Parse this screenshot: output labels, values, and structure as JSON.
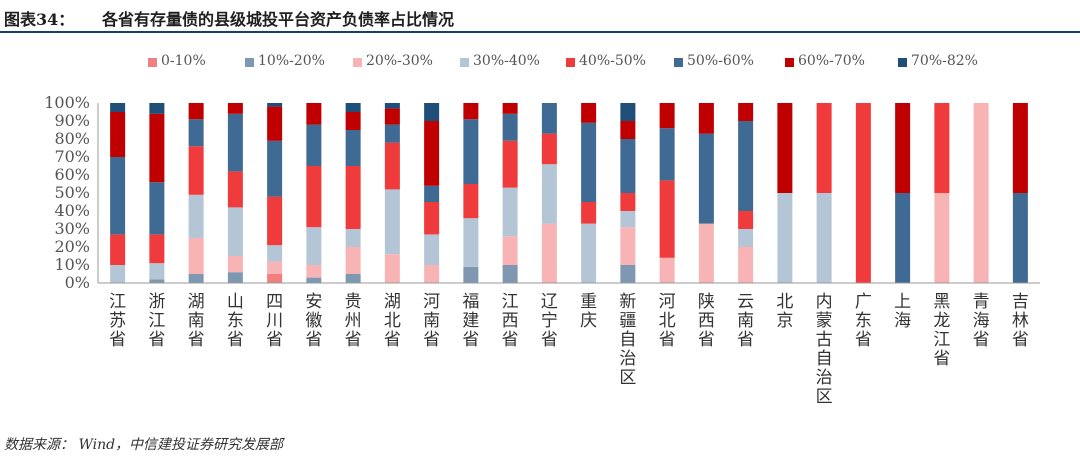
{
  "header": {
    "label": "图表34：",
    "title": "各省有存量债的县级城投平台资产负债率占比情况"
  },
  "footer": {
    "source": "数据来源： Wind，中信建投证券研究发展部"
  },
  "chart_data": {
    "type": "bar",
    "stacked": true,
    "title": "",
    "xlabel": "",
    "ylabel": "",
    "ylim": [
      0,
      100
    ],
    "yticks": [
      "0%",
      "10%",
      "20%",
      "30%",
      "40%",
      "50%",
      "60%",
      "70%",
      "80%",
      "90%",
      "100%"
    ],
    "legend_position": "top",
    "grid": false,
    "categories": [
      "江苏省",
      "浙江省",
      "湖南省",
      "山东省",
      "四川省",
      "安徽省",
      "贵州省",
      "湖北省",
      "河南省",
      "福建省",
      "江西省",
      "辽宁省",
      "重庆",
      "新疆自治区",
      "河北省",
      "陕西省",
      "云南省",
      "北京",
      "内蒙古自治区",
      "广东省",
      "上海",
      "黑龙江省",
      "青海省",
      "吉林省"
    ],
    "series": [
      {
        "name": "0-10%",
        "color": "#f08080",
        "values": [
          0,
          0,
          0,
          0,
          5,
          0,
          0,
          0,
          0,
          0,
          0,
          0,
          0,
          0,
          0,
          0,
          0,
          0,
          0,
          0,
          0,
          0,
          0,
          0
        ]
      },
      {
        "name": "10%-20%",
        "color": "#7f98b2",
        "values": [
          0,
          2,
          5,
          6,
          0,
          3,
          5,
          0,
          0,
          9,
          10,
          0,
          0,
          10,
          0,
          0,
          0,
          0,
          0,
          0,
          0,
          0,
          0,
          0
        ]
      },
      {
        "name": "20%-30%",
        "color": "#f8b4b4",
        "values": [
          0,
          0,
          20,
          9,
          7,
          7,
          15,
          16,
          10,
          0,
          16,
          33,
          0,
          21,
          14,
          33,
          20,
          0,
          0,
          0,
          0,
          50,
          100,
          0
        ]
      },
      {
        "name": "30%-40%",
        "color": "#b4c6d6",
        "values": [
          10,
          9,
          24,
          27,
          9,
          21,
          10,
          36,
          17,
          27,
          27,
          33,
          33,
          9,
          0,
          0,
          10,
          50,
          50,
          0,
          0,
          0,
          0,
          0
        ]
      },
      {
        "name": "40%-50%",
        "color": "#ef3b3b",
        "values": [
          17,
          16,
          27,
          20,
          27,
          34,
          35,
          26,
          18,
          19,
          26,
          17,
          12,
          10,
          43,
          0,
          10,
          0,
          50,
          100,
          0,
          50,
          0,
          0
        ]
      },
      {
        "name": "50%-60%",
        "color": "#3e6a94",
        "values": [
          43,
          29,
          15,
          32,
          31,
          23,
          20,
          10,
          9,
          36,
          15,
          17,
          44,
          30,
          29,
          50,
          50,
          0,
          0,
          0,
          50,
          0,
          0,
          50
        ]
      },
      {
        "name": "60%-70%",
        "color": "#c00000",
        "values": [
          25,
          38,
          9,
          6,
          19,
          12,
          10,
          9,
          36,
          9,
          6,
          0,
          11,
          10,
          14,
          17,
          10,
          50,
          0,
          0,
          50,
          0,
          0,
          50
        ]
      },
      {
        "name": "70%-82%",
        "color": "#1f4e79",
        "values": [
          5,
          6,
          0,
          0,
          2,
          0,
          5,
          3,
          10,
          0,
          0,
          0,
          0,
          10,
          0,
          0,
          0,
          0,
          0,
          0,
          0,
          0,
          0,
          0
        ]
      }
    ]
  }
}
